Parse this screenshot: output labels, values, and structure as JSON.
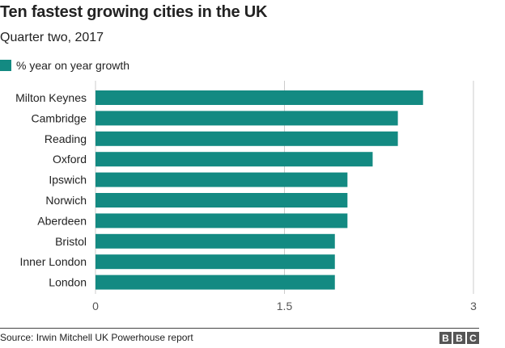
{
  "header": {
    "title": "Ten fastest growing cities in the UK",
    "subtitle": "Quarter two, 2017"
  },
  "colors": {
    "bar": "#138a82",
    "gridline": "#cccccc",
    "text": "#222222",
    "tick_text": "#555555"
  },
  "footer": {
    "source": "Source: Irwin Mitchell UK Powerhouse report",
    "logo_letters": [
      "B",
      "B",
      "C"
    ]
  },
  "chart_data": {
    "type": "bar",
    "orientation": "horizontal",
    "title": "Ten fastest growing cities in the UK",
    "subtitle": "Quarter two, 2017",
    "xlabel": "",
    "ylabel": "",
    "categories": [
      "Milton Keynes",
      "Cambridge",
      "Reading",
      "Oxford",
      "Ipswich",
      "Norwich",
      "Aberdeen",
      "Bristol",
      "Inner London",
      "London"
    ],
    "series": [
      {
        "name": "% year on year growth",
        "values": [
          2.6,
          2.4,
          2.4,
          2.2,
          2.0,
          2.0,
          2.0,
          1.9,
          1.9,
          1.9
        ]
      }
    ],
    "xlim": [
      0,
      3
    ],
    "xticks": [
      0,
      1.5,
      3
    ],
    "xtick_labels": [
      "0",
      "1.5",
      "3"
    ],
    "grid": true,
    "legend": "top-left"
  }
}
